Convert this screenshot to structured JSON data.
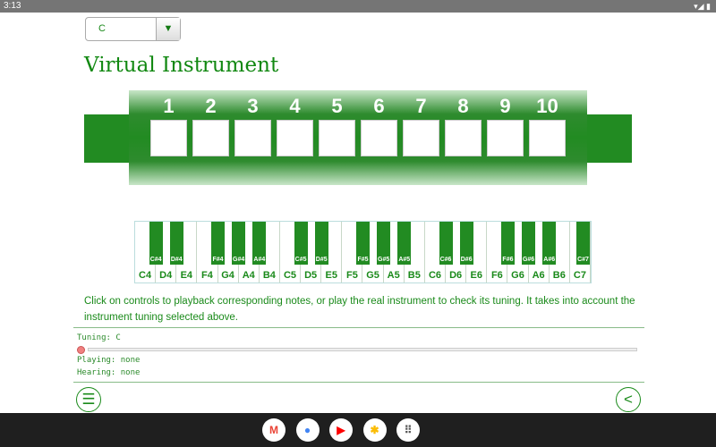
{
  "status_bar": {
    "time": "3:13",
    "right_icons": "▾◢ ▮"
  },
  "tuning_select": {
    "value": "C",
    "arrow": "▼"
  },
  "title": "Virtual Instrument",
  "harmonica": {
    "holes": [
      "1",
      "2",
      "3",
      "4",
      "5",
      "6",
      "7",
      "8",
      "9",
      "10"
    ]
  },
  "piano": {
    "white_keys": [
      "C4",
      "D4",
      "E4",
      "F4",
      "G4",
      "A4",
      "B4",
      "C5",
      "D5",
      "E5",
      "F5",
      "G5",
      "A5",
      "B5",
      "C6",
      "D6",
      "E6",
      "F6",
      "G6",
      "A6",
      "B6",
      "C7"
    ],
    "black_keys": [
      "C#4",
      "D#4",
      "F#4",
      "G#4",
      "A#4",
      "C#5",
      "D#5",
      "F#5",
      "G#5",
      "A#5",
      "C#6",
      "D#6",
      "F#6",
      "G#6",
      "A#6",
      "C#7"
    ]
  },
  "description": "Click on controls to playback corresponding notes, or play the real instrument to check its tuning. It takes into account the instrument tuning selected above.",
  "panel": {
    "tuning": "Tuning:  C",
    "playing": "Playing: none",
    "hearing": "Hearing: none"
  },
  "buttons": {
    "menu": "☰",
    "back": "<"
  },
  "dock": [
    {
      "name": "gmail",
      "glyph": "M",
      "color": "#ea4335"
    },
    {
      "name": "chrome",
      "glyph": "●",
      "color": "#4285f4"
    },
    {
      "name": "youtube",
      "glyph": "▶",
      "color": "#ff0000"
    },
    {
      "name": "photos",
      "glyph": "✱",
      "color": "#fbbc05"
    },
    {
      "name": "app-drawer",
      "glyph": "⠿",
      "color": "#555"
    }
  ]
}
